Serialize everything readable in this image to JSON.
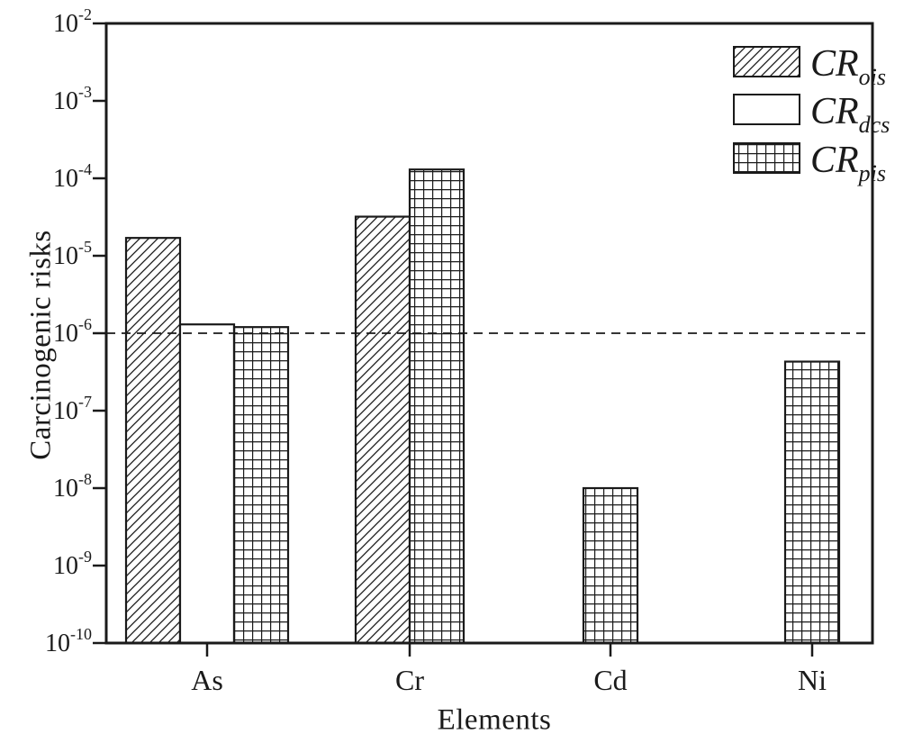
{
  "figure": {
    "background": "#ffffff",
    "ink_color": "#1a1a1a"
  },
  "chart_data": {
    "type": "bar",
    "title": "",
    "xlabel": "Elements",
    "ylabel": "Carcinogenic risks",
    "yscale": "log",
    "ylim": [
      1e-10,
      0.01
    ],
    "y_tick_exponents": [
      -2,
      -3,
      -4,
      -5,
      -6,
      -7,
      -8,
      -9,
      -10
    ],
    "categories": [
      "As",
      "Cr",
      "Cd",
      "Ni"
    ],
    "series": [
      {
        "name": "CR_ois",
        "legend_base": "CR",
        "legend_sub": "ois",
        "pattern": "diagonal-hatch",
        "values": [
          1.7e-05,
          3.2e-05,
          null,
          null
        ]
      },
      {
        "name": "CR_dcs",
        "legend_base": "CR",
        "legend_sub": "dcs",
        "pattern": "plain-white",
        "values": [
          1.3e-06,
          null,
          null,
          null
        ]
      },
      {
        "name": "CR_pis",
        "legend_base": "CR",
        "legend_sub": "pis",
        "pattern": "grid",
        "values": [
          1.2e-06,
          0.00013,
          1e-08,
          4.3e-07
        ]
      }
    ],
    "reference_line": {
      "value": 1e-06,
      "style": "dashed",
      "color": "#1a1a1a"
    },
    "legend_position": "top-right",
    "grid": false,
    "bar_fill": "#ffffff",
    "bar_outline": "#1a1a1a"
  }
}
